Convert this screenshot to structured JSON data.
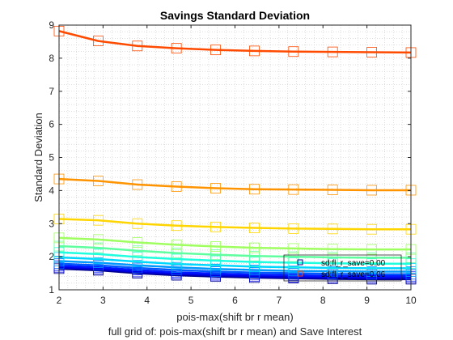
{
  "chart_data": {
    "type": "line",
    "title": "Savings Standard Deviation",
    "xlabel": "pois-max(shift br r mean)",
    "subtitle": "full grid of: pois-max(shift br r mean) and Save Interest",
    "ylabel": "Standard Deviation",
    "xlim": [
      2,
      10
    ],
    "ylim": [
      1,
      9
    ],
    "xticks": [
      "2",
      "3",
      "4",
      "5",
      "6",
      "7",
      "8",
      "9",
      "10"
    ],
    "yticks": [
      "1",
      "2",
      "3",
      "4",
      "5",
      "6",
      "7",
      "8",
      "9"
    ],
    "grid": "minor dotted",
    "legend_position": "bottom-right",
    "marker": "square",
    "x": [
      2.0,
      2.89,
      3.78,
      4.67,
      5.56,
      6.44,
      7.33,
      8.22,
      9.11,
      10.0
    ],
    "series": [
      {
        "name": "sd;fl_r_save=0.06",
        "color": "#ff4a00",
        "values": [
          8.82,
          8.52,
          8.37,
          8.3,
          8.25,
          8.22,
          8.2,
          8.19,
          8.18,
          8.17
        ]
      },
      {
        "color": "#ff9400",
        "values": [
          4.35,
          4.29,
          4.18,
          4.12,
          4.07,
          4.04,
          4.03,
          4.02,
          4.01,
          4.01
        ]
      },
      {
        "color": "#ffd500",
        "values": [
          3.14,
          3.1,
          3.0,
          2.94,
          2.9,
          2.87,
          2.85,
          2.84,
          2.83,
          2.83
        ]
      },
      {
        "color": "#9fff5f",
        "values": [
          2.57,
          2.52,
          2.43,
          2.36,
          2.31,
          2.27,
          2.25,
          2.23,
          2.22,
          2.22
        ]
      },
      {
        "color": "#5fffa0",
        "values": [
          2.32,
          2.27,
          2.18,
          2.11,
          2.06,
          2.02,
          2.0,
          1.98,
          1.97,
          1.97
        ]
      },
      {
        "color": "#1fffdf",
        "values": [
          2.13,
          2.08,
          1.99,
          1.93,
          1.88,
          1.84,
          1.82,
          1.8,
          1.79,
          1.79
        ]
      },
      {
        "color": "#00d7ff",
        "values": [
          1.98,
          1.93,
          1.85,
          1.78,
          1.74,
          1.7,
          1.68,
          1.66,
          1.65,
          1.65
        ]
      },
      {
        "color": "#0097ff",
        "values": [
          1.87,
          1.82,
          1.74,
          1.68,
          1.63,
          1.6,
          1.57,
          1.56,
          1.55,
          1.55
        ]
      },
      {
        "color": "#0057ff",
        "values": [
          1.79,
          1.74,
          1.66,
          1.6,
          1.55,
          1.52,
          1.5,
          1.48,
          1.47,
          1.47
        ]
      },
      {
        "color": "#0017ff",
        "values": [
          1.73,
          1.68,
          1.6,
          1.53,
          1.49,
          1.46,
          1.44,
          1.42,
          1.41,
          1.41
        ]
      },
      {
        "color": "#0000e0",
        "values": [
          1.68,
          1.63,
          1.54,
          1.48,
          1.44,
          1.41,
          1.38,
          1.37,
          1.36,
          1.36
        ]
      },
      {
        "name": "sd;fl_r_save=0.00",
        "color": "#000090",
        "values": [
          1.64,
          1.59,
          1.5,
          1.44,
          1.4,
          1.37,
          1.35,
          1.33,
          1.32,
          1.32
        ]
      }
    ],
    "legend": [
      {
        "label": "sd;fl_r_save=0.00",
        "color": "#000090"
      },
      {
        "label": "sd;fl_r_save=0.06",
        "color": "#ff4a00"
      }
    ]
  }
}
